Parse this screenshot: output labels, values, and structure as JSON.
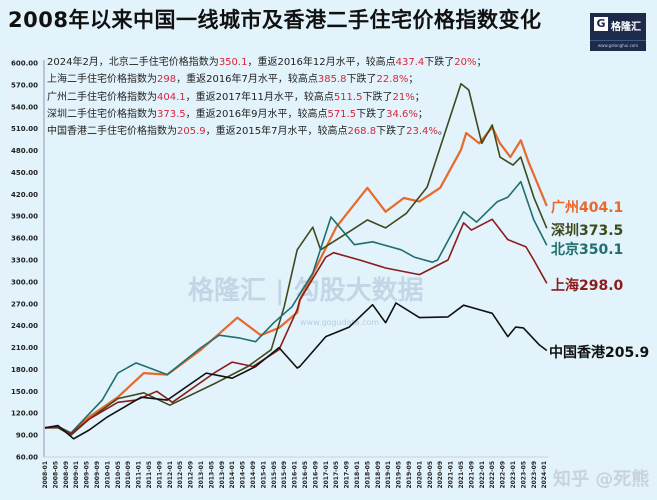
{
  "title": "2008年以来中国一线城市及香港二手住宅价格指数变化",
  "logo": {
    "mark": "G",
    "name": "格隆汇",
    "url": "www.gelonghui.com"
  },
  "notes": [
    {
      "parts": [
        "2024年2月，北京二手住宅价格指数为",
        "350.1",
        "，重返2016年12月水平，较高点",
        "437.4",
        "下跌了",
        "20%",
        "；"
      ]
    },
    {
      "parts": [
        "上海二手住宅价格指数为",
        "298",
        "，重返2016年7月水平，较高点",
        "385.8",
        "下跌了",
        "22.8%",
        "；"
      ]
    },
    {
      "parts": [
        "广州二手住宅价格指数为",
        "404.1",
        "，重返2017年11月水平，较高点",
        "511.5",
        "下跌了",
        "21%",
        "；"
      ]
    },
    {
      "parts": [
        "深圳二手住宅价格指数为",
        "373.5",
        "，重返2016年9月水平，较高点",
        "571.5",
        "下跌了",
        "34.6%",
        "；"
      ]
    },
    {
      "parts": [
        "中国香港二手住宅价格指数为",
        "205.9",
        "，重返2015年7月水平，较高点",
        "268.8",
        "下跌了",
        "23.4%",
        "。"
      ]
    }
  ],
  "watermarks": {
    "center": "格隆汇 | 勾股大数据",
    "center_url": "www.gogudata.com",
    "bottom_right": "知乎 @死熊"
  },
  "chart_data": {
    "type": "line",
    "title": "2008年以来中国一线城市及香港二手住宅价格指数变化",
    "ylim": [
      60,
      600
    ],
    "y_ticks": [
      "60.00",
      "90.00",
      "120.00",
      "150.00",
      "180.00",
      "210.00",
      "240.00",
      "270.00",
      "300.00",
      "330.00",
      "360.00",
      "390.00",
      "420.00",
      "450.00",
      "480.00",
      "510.00",
      "540.00",
      "570.00",
      "600.00"
    ],
    "x_range": [
      "2008-01",
      "2024-02"
    ],
    "x_ticks": [
      "2008-01",
      "2008-05",
      "2008-09",
      "2009-01",
      "2009-05",
      "2009-09",
      "2010-01",
      "2010-05",
      "2010-09",
      "2011-01",
      "2011-05",
      "2011-09",
      "2012-01",
      "2012-05",
      "2012-09",
      "2013-01",
      "2013-05",
      "2013-09",
      "2014-01",
      "2014-05",
      "2014-09",
      "2015-01",
      "2015-05",
      "2015-09",
      "2016-01",
      "2016-05",
      "2016-09",
      "2017-01",
      "2017-05",
      "2017-09",
      "2018-01",
      "2018-05",
      "2018-09",
      "2019-01",
      "2019-05",
      "2019-09",
      "2020-01",
      "2020-05",
      "2020-09",
      "2021-01",
      "2021-05",
      "2021-09",
      "2022-01",
      "2022-05",
      "2022-09",
      "2023-01",
      "2023-05",
      "2023-09",
      "2024-01"
    ],
    "grid": false,
    "legend": "end-labels",
    "series": [
      {
        "name": "广州",
        "end_label": "广州404.1",
        "color": "#e8692a",
        "points": [
          [
            "2008-01",
            100
          ],
          [
            "2008-06",
            101
          ],
          [
            "2008-11",
            92
          ],
          [
            "2009-06",
            115
          ],
          [
            "2010-05",
            142
          ],
          [
            "2011-03",
            175
          ],
          [
            "2011-12",
            173
          ],
          [
            "2013-01",
            207
          ],
          [
            "2014-03",
            251
          ],
          [
            "2014-12",
            227
          ],
          [
            "2015-07",
            237
          ],
          [
            "2016-02",
            258
          ],
          [
            "2016-03",
            275
          ],
          [
            "2017-05",
            375
          ],
          [
            "2018-05",
            429
          ],
          [
            "2018-12",
            396
          ],
          [
            "2019-07",
            415
          ],
          [
            "2020-01",
            410
          ],
          [
            "2020-09",
            429
          ],
          [
            "2021-05",
            481
          ],
          [
            "2021-07",
            504
          ],
          [
            "2021-12",
            490
          ],
          [
            "2022-05",
            512
          ],
          [
            "2022-08",
            490
          ],
          [
            "2022-12",
            471
          ],
          [
            "2023-04",
            494
          ],
          [
            "2023-07",
            464
          ],
          [
            "2024-02",
            404.1
          ]
        ]
      },
      {
        "name": "深圳",
        "end_label": "深圳373.5",
        "color": "#3f4a1c",
        "points": [
          [
            "2008-01",
            100
          ],
          [
            "2008-06",
            100
          ],
          [
            "2008-11",
            90
          ],
          [
            "2009-06",
            112
          ],
          [
            "2010-05",
            140
          ],
          [
            "2011-03",
            148
          ],
          [
            "2012-01",
            131
          ],
          [
            "2013-07",
            162
          ],
          [
            "2014-07",
            184
          ],
          [
            "2015-04",
            207
          ],
          [
            "2015-09",
            266
          ],
          [
            "2016-02",
            344
          ],
          [
            "2016-08",
            375
          ],
          [
            "2016-11",
            344
          ],
          [
            "2017-11",
            371
          ],
          [
            "2018-05",
            385
          ],
          [
            "2018-12",
            374
          ],
          [
            "2019-08",
            394
          ],
          [
            "2020-04",
            430
          ],
          [
            "2021-05",
            571.5
          ],
          [
            "2021-08",
            563
          ],
          [
            "2022-01",
            490
          ],
          [
            "2022-05",
            515
          ],
          [
            "2022-08",
            471
          ],
          [
            "2023-01",
            460
          ],
          [
            "2023-04",
            471
          ],
          [
            "2023-09",
            416
          ],
          [
            "2024-02",
            373.5
          ]
        ]
      },
      {
        "name": "北京",
        "end_label": "北京350.1",
        "color": "#1f6f6e",
        "points": [
          [
            "2008-01",
            100
          ],
          [
            "2008-06",
            102
          ],
          [
            "2008-11",
            93
          ],
          [
            "2009-11",
            138
          ],
          [
            "2010-05",
            175
          ],
          [
            "2010-12",
            189
          ],
          [
            "2011-12",
            173
          ],
          [
            "2013-01",
            210
          ],
          [
            "2013-08",
            227
          ],
          [
            "2014-04",
            223
          ],
          [
            "2014-10",
            218
          ],
          [
            "2015-05",
            244
          ],
          [
            "2015-12",
            266
          ],
          [
            "2016-08",
            312
          ],
          [
            "2017-03",
            389
          ],
          [
            "2017-12",
            351
          ],
          [
            "2018-07",
            355
          ],
          [
            "2019-06",
            344
          ],
          [
            "2019-11",
            334
          ],
          [
            "2020-06",
            327
          ],
          [
            "2020-08",
            330
          ],
          [
            "2021-06",
            396
          ],
          [
            "2021-11",
            382
          ],
          [
            "2022-07",
            410
          ],
          [
            "2022-11",
            416
          ],
          [
            "2023-04",
            437.4
          ],
          [
            "2023-09",
            385
          ],
          [
            "2024-02",
            350.1
          ]
        ]
      },
      {
        "name": "上海",
        "end_label": "上海298.0",
        "color": "#8c1c1c",
        "points": [
          [
            "2008-01",
            100
          ],
          [
            "2008-06",
            101
          ],
          [
            "2008-11",
            92
          ],
          [
            "2009-06",
            112
          ],
          [
            "2010-05",
            135
          ],
          [
            "2010-12",
            138
          ],
          [
            "2011-08",
            150
          ],
          [
            "2012-02",
            135
          ],
          [
            "2013-06",
            175
          ],
          [
            "2014-01",
            190
          ],
          [
            "2014-09",
            184
          ],
          [
            "2015-07",
            207
          ],
          [
            "2016-02",
            262
          ],
          [
            "2016-03",
            275
          ],
          [
            "2017-01",
            334
          ],
          [
            "2017-04",
            340
          ],
          [
            "2018-02",
            330
          ],
          [
            "2018-12",
            319
          ],
          [
            "2020-01",
            310
          ],
          [
            "2020-12",
            330
          ],
          [
            "2021-06",
            381
          ],
          [
            "2021-09",
            371
          ],
          [
            "2022-05",
            385.8
          ],
          [
            "2022-11",
            358
          ],
          [
            "2023-06",
            348
          ],
          [
            "2023-09",
            330
          ],
          [
            "2024-02",
            298
          ]
        ]
      },
      {
        "name": "中国香港",
        "end_label": "中国香港205.9",
        "color": "#111111",
        "points": [
          [
            "2008-01",
            100
          ],
          [
            "2008-06",
            103
          ],
          [
            "2008-12",
            85
          ],
          [
            "2009-06",
            97
          ],
          [
            "2010-01",
            115
          ],
          [
            "2011-02",
            142
          ],
          [
            "2011-12",
            138
          ],
          [
            "2013-03",
            175
          ],
          [
            "2014-01",
            168
          ],
          [
            "2014-10",
            184
          ],
          [
            "2015-07",
            210
          ],
          [
            "2016-02",
            182
          ],
          [
            "2016-03",
            184
          ],
          [
            "2017-01",
            225
          ],
          [
            "2017-10",
            238
          ],
          [
            "2018-07",
            268.8
          ],
          [
            "2018-12",
            244
          ],
          [
            "2019-04",
            271
          ],
          [
            "2020-01",
            251
          ],
          [
            "2020-12",
            252
          ],
          [
            "2021-06",
            268
          ],
          [
            "2021-12",
            262
          ],
          [
            "2022-05",
            257
          ],
          [
            "2022-11",
            225
          ],
          [
            "2023-02",
            238
          ],
          [
            "2023-05",
            237
          ],
          [
            "2023-11",
            214
          ],
          [
            "2024-02",
            205.9
          ]
        ]
      }
    ]
  }
}
